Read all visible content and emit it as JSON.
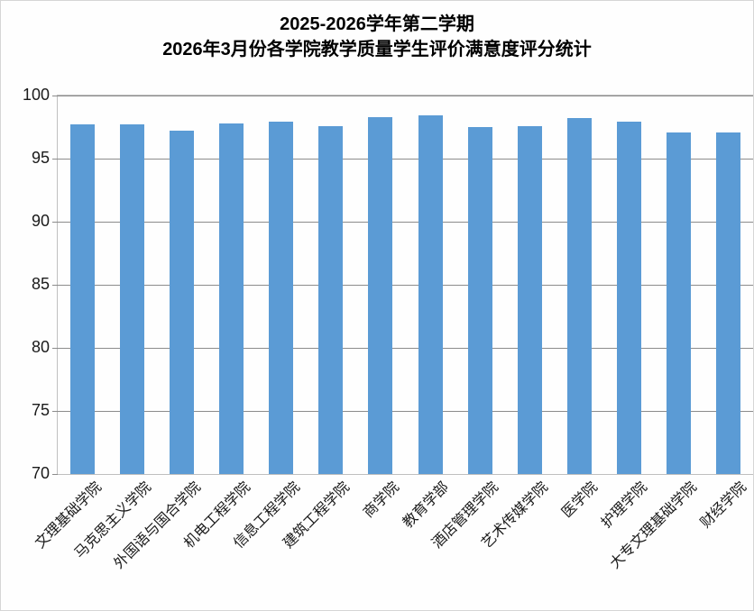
{
  "title": {
    "line1": "2025-2026学年第二学期",
    "line2": "2026年3月份各学院教学质量学生评价满意度评分统计"
  },
  "chart_data": {
    "type": "bar",
    "title": "2025-2026学年第二学期 2026年3月份各学院教学质量学生评价满意度评分统计",
    "categories": [
      "文理基础学院",
      "马克思主义学院",
      "外国语与国合学院",
      "机电工程学院",
      "信息工程学院",
      "建筑工程学院",
      "商学院",
      "教育学部",
      "酒店管理学院",
      "艺术传媒学院",
      "医学院",
      "护理学院",
      "大专文理基础学院",
      "财经学院"
    ],
    "values": [
      97.75,
      97.75,
      97.2,
      97.8,
      97.95,
      97.6,
      98.3,
      98.45,
      97.5,
      97.6,
      98.2,
      97.9,
      97.1,
      97.1
    ],
    "xlabel": "",
    "ylabel": "",
    "ylim": [
      70,
      100
    ],
    "yticks": [
      70,
      75,
      80,
      85,
      90,
      95,
      100
    ],
    "grid": "horizontal",
    "legend": "none",
    "bar_color": "#5B9BD5",
    "gridline_color": "#8C8C8C",
    "axis_border_color": "#BFBFBF",
    "text_color": "#1A1A1A"
  }
}
